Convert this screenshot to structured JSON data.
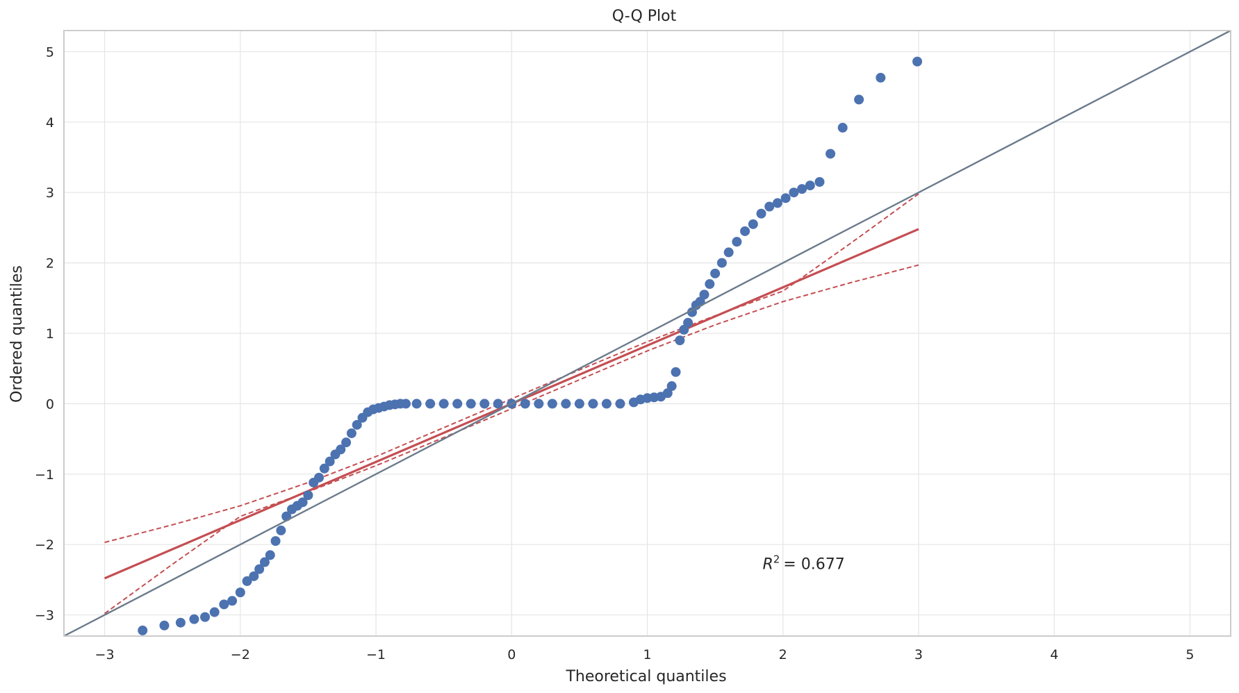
{
  "chart_data": {
    "type": "scatter",
    "title": "Q-Q Plot",
    "xlabel": "Theoretical quantiles",
    "ylabel": "Ordered quantiles",
    "xlim": [
      -3.3,
      5.3
    ],
    "ylim": [
      -3.3,
      5.3
    ],
    "xticks": [
      -3,
      -2,
      -1,
      0,
      1,
      2,
      3,
      4,
      5
    ],
    "yticks": [
      -3,
      -2,
      -1,
      0,
      1,
      2,
      3,
      4,
      5
    ],
    "xtick_labels": [
      "−3",
      "−2",
      "−1",
      "0",
      "1",
      "2",
      "3",
      "4",
      "5"
    ],
    "ytick_labels": [
      "−3",
      "−2",
      "−1",
      "0",
      "1",
      "2",
      "3",
      "4",
      "5"
    ],
    "grid": true,
    "annotation": {
      "r2_text": "= 0.677",
      "x": 1.85,
      "y": -2.35
    },
    "colors": {
      "points": "#4c72b0",
      "fit_line": "#c44e52",
      "band": "#c44e52",
      "reference": "#6b7b8c",
      "grid": "#e5e5e5",
      "frame": "#cccccc"
    },
    "reference_line": {
      "slope": 1,
      "intercept": 0
    },
    "fit_line": {
      "x": [
        -3,
        3
      ],
      "y": [
        -2.48,
        2.48
      ]
    },
    "confidence_band": {
      "x": [
        -3,
        -2.5,
        -2,
        -1.5,
        -1,
        -0.5,
        0,
        0.5,
        1,
        1.5,
        2,
        2.5,
        3
      ],
      "upper": [
        -1.97,
        -1.72,
        -1.45,
        -1.12,
        -0.75,
        -0.34,
        0.07,
        0.48,
        0.88,
        1.25,
        1.6,
        2.28,
        2.98
      ],
      "lower": [
        -2.98,
        -2.28,
        -1.6,
        -1.25,
        -0.88,
        -0.48,
        -0.07,
        0.34,
        0.75,
        1.12,
        1.45,
        1.72,
        1.97
      ]
    },
    "series": [
      {
        "x": [
          -2.72,
          -2.56,
          -2.44,
          -2.34,
          -2.26,
          -2.19,
          -2.12,
          -2.06,
          -2.0,
          -1.95,
          -1.9,
          -1.86,
          -1.82,
          -1.78,
          -1.74,
          -1.7,
          -1.66,
          -1.62,
          -1.58,
          -1.54,
          -1.5,
          -1.46,
          -1.42,
          -1.38,
          -1.34,
          -1.3,
          -1.26,
          -1.22,
          -1.18,
          -1.14,
          -1.1,
          -1.06,
          -1.02,
          -0.98,
          -0.94,
          -0.9,
          -0.86,
          -0.82,
          -0.78,
          -0.7,
          -0.6,
          -0.5,
          -0.4,
          -0.3,
          -0.2,
          -0.1,
          0.0,
          0.1,
          0.2,
          0.3,
          0.4,
          0.5,
          0.6,
          0.7,
          0.8,
          0.9,
          0.95,
          1.0,
          1.05,
          1.1,
          1.15,
          1.18,
          1.21,
          1.24,
          1.27,
          1.3,
          1.33,
          1.36,
          1.39,
          1.42,
          1.46,
          1.5,
          1.55,
          1.6,
          1.66,
          1.72,
          1.78,
          1.84,
          1.9,
          1.96,
          2.02,
          2.08,
          2.14,
          2.2,
          2.27,
          2.35,
          2.44,
          2.56,
          2.72,
          2.99
        ],
        "y": [
          -3.22,
          -3.15,
          -3.11,
          -3.06,
          -3.03,
          -2.96,
          -2.85,
          -2.8,
          -2.68,
          -2.52,
          -2.45,
          -2.35,
          -2.25,
          -2.15,
          -1.95,
          -1.8,
          -1.6,
          -1.5,
          -1.45,
          -1.4,
          -1.3,
          -1.12,
          -1.05,
          -0.92,
          -0.82,
          -0.72,
          -0.65,
          -0.55,
          -0.42,
          -0.3,
          -0.2,
          -0.12,
          -0.08,
          -0.06,
          -0.04,
          -0.02,
          -0.01,
          0.0,
          0.0,
          0.0,
          0.0,
          0.0,
          0.0,
          0.0,
          0.0,
          0.0,
          0.0,
          0.0,
          0.0,
          0.0,
          0.0,
          0.0,
          0.0,
          0.0,
          0.0,
          0.02,
          0.06,
          0.08,
          0.09,
          0.1,
          0.15,
          0.25,
          0.45,
          0.9,
          1.05,
          1.15,
          1.3,
          1.4,
          1.45,
          1.55,
          1.7,
          1.85,
          2.0,
          2.15,
          2.3,
          2.45,
          2.55,
          2.7,
          2.8,
          2.85,
          2.92,
          3.0,
          3.05,
          3.1,
          3.15,
          3.55,
          3.92,
          4.32,
          4.63,
          4.86
        ]
      }
    ]
  }
}
